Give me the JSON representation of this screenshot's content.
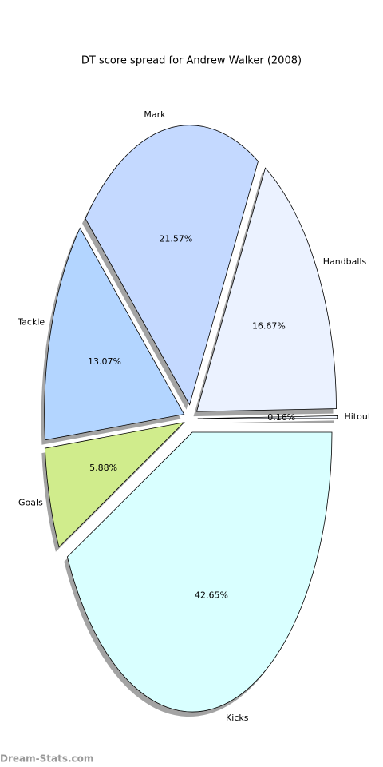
{
  "chart_data": {
    "type": "pie",
    "title": "DT score spread for Andrew Walker (2008)",
    "categories": [
      "Kicks",
      "Goals",
      "Tackle",
      "Mark",
      "Handballs",
      "Hitout"
    ],
    "values": [
      42.65,
      5.88,
      13.07,
      21.57,
      16.67,
      0.16
    ],
    "value_labels": [
      "42.65%",
      "5.88%",
      "13.07%",
      "21.57%",
      "16.67%",
      "0.16%"
    ],
    "colors": [
      "#d9ffff",
      "#d0ec8c",
      "#b3d5ff",
      "#c4d9ff",
      "#ebf2ff",
      "#f4f8ff"
    ],
    "shadow": true,
    "watermark": "Dream-Stats.com"
  }
}
